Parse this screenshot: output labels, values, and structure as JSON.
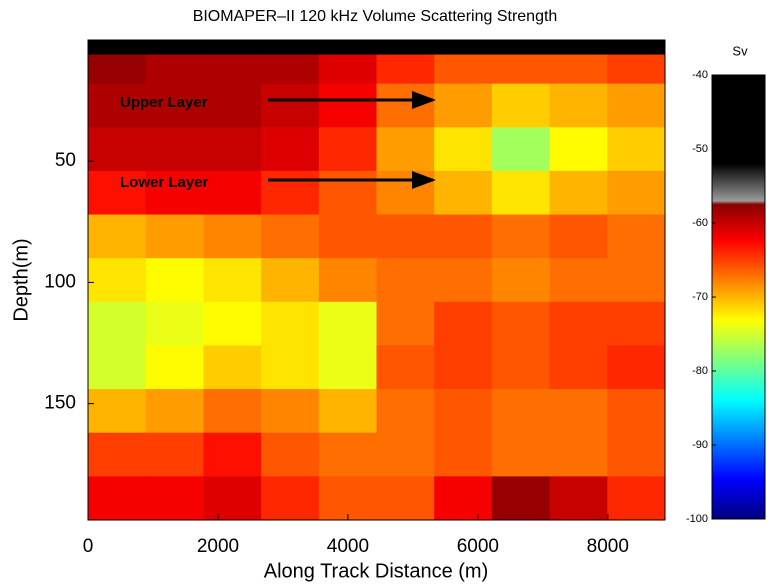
{
  "chart_data": {
    "type": "heatmap",
    "title": "BIOMAPER–II 120 kHz Volume Scattering Strength",
    "xlabel": "Along Track Distance (m)",
    "ylabel": "Depth(m)",
    "xlim": [
      0,
      8880
    ],
    "xticks": [
      0,
      2000,
      4000,
      6000,
      8000
    ],
    "ylim": [
      0,
      198
    ],
    "yticks": [
      50,
      100,
      150
    ],
    "y_inverted": true,
    "xbins": [
      0,
      888,
      1776,
      2664,
      3552,
      4440,
      5328,
      6216,
      7104,
      7992,
      8880
    ],
    "ybins": [
      0,
      6,
      18,
      36,
      54,
      72,
      90,
      108,
      126,
      144,
      162,
      180,
      198
    ],
    "z": [
      [
        -45,
        -45,
        -45,
        -45,
        -45,
        -45,
        -45,
        -45,
        -45,
        -45
      ],
      [
        -58,
        -59,
        -59,
        -59,
        -61,
        -64,
        -66,
        -66,
        -66,
        -65
      ],
      [
        -59,
        -59,
        -59,
        -60,
        -62,
        -67,
        -69,
        -71,
        -70,
        -69
      ],
      [
        -60,
        -60,
        -60,
        -61,
        -64,
        -69,
        -72,
        -77,
        -73,
        -71
      ],
      [
        -63,
        -62,
        -62,
        -64,
        -66,
        -68,
        -70,
        -72,
        -70,
        -69
      ],
      [
        -70,
        -69,
        -68,
        -67,
        -66,
        -66,
        -66,
        -67,
        -66,
        -67
      ],
      [
        -72,
        -73,
        -72,
        -70,
        -68,
        -67,
        -67,
        -68,
        -67,
        -67
      ],
      [
        -75,
        -74,
        -73,
        -72,
        -74,
        -67,
        -65,
        -66,
        -65,
        -65
      ],
      [
        -75,
        -73,
        -71,
        -72,
        -74,
        -66,
        -65,
        -66,
        -65,
        -64
      ],
      [
        -70,
        -69,
        -67,
        -68,
        -70,
        -67,
        -66,
        -67,
        -67,
        -66
      ],
      [
        -65,
        -65,
        -63,
        -66,
        -67,
        -67,
        -66,
        -67,
        -67,
        -66
      ],
      [
        -62,
        -62,
        -61,
        -64,
        -66,
        -66,
        -62,
        -58,
        -60,
        -64
      ]
    ],
    "colormap": "jet",
    "colorbar_label": "Sv",
    "clim": [
      -100,
      -40
    ],
    "cticks": [
      -100,
      -90,
      -80,
      -70,
      -60,
      -50,
      -40
    ],
    "annotations": [
      "Upper Layer",
      "Lower Layer"
    ]
  }
}
